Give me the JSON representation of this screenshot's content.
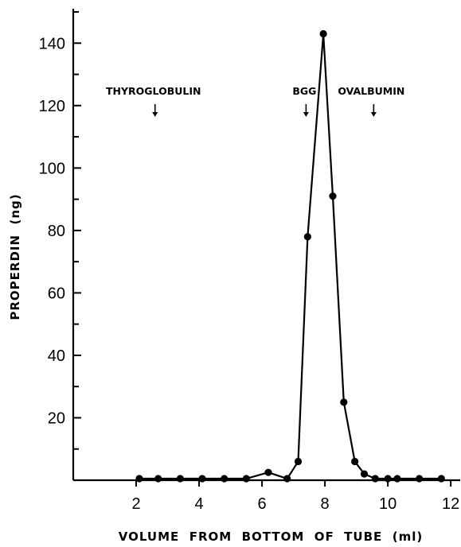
{
  "chart_data": {
    "type": "line",
    "title": "",
    "xlabel": "VOLUME  FROM  BOTTOM  OF  TUBE  (ml)",
    "ylabel": "PROPERDIN  (ng)",
    "xlim": [
      0,
      12.3
    ],
    "ylim": [
      0,
      150
    ],
    "x_ticks": [
      2,
      4,
      6,
      8,
      10,
      12
    ],
    "y_ticks": [
      20,
      40,
      60,
      80,
      100,
      120,
      140
    ],
    "y_minor_ticks": [
      10,
      30,
      50,
      70,
      90,
      110,
      130,
      150
    ],
    "grid": false,
    "series": [
      {
        "x": [
          2.1,
          2.7,
          3.4,
          4.1,
          4.8,
          5.5,
          6.2,
          6.8,
          7.15,
          7.45,
          7.95,
          8.25,
          8.6,
          8.95,
          9.25,
          9.6,
          10.0,
          10.3,
          11.0,
          11.7
        ],
        "y": [
          0.5,
          0.5,
          0.5,
          0.5,
          0.5,
          0.5,
          2.5,
          0.5,
          6,
          78,
          143,
          91,
          25,
          6,
          2,
          0.5,
          0.5,
          0.5,
          0.5,
          0.5
        ]
      }
    ],
    "markers": [
      {
        "label": "THYROGLOBULIN",
        "x": 2.6
      },
      {
        "label": "BGG",
        "x": 7.4
      },
      {
        "label": "OVALBUMIN",
        "x": 9.55
      }
    ]
  }
}
